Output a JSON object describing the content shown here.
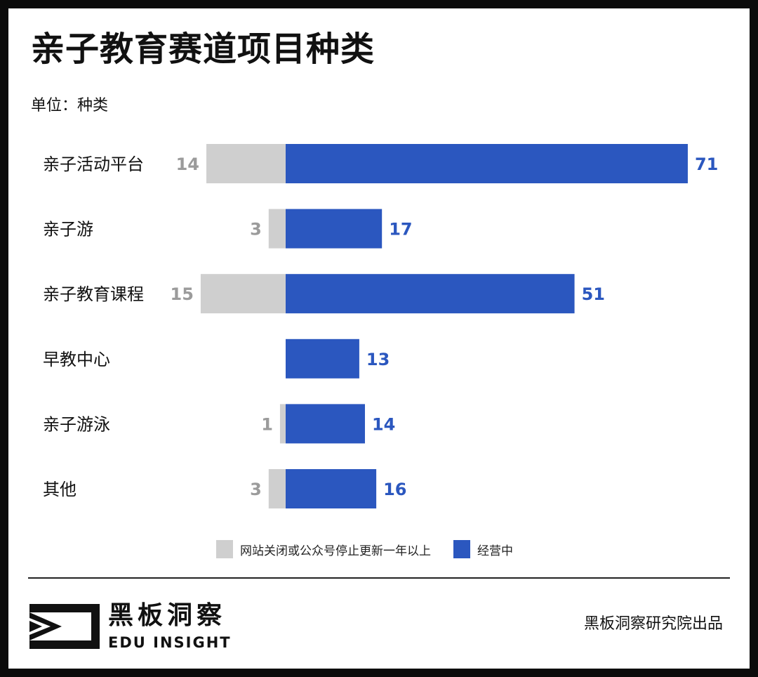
{
  "chart_data": {
    "type": "bar",
    "orientation": "horizontal",
    "stacked": "diverging",
    "title": "亲子教育赛道项目种类",
    "unit_label": "单位：种类",
    "categories": [
      "亲子活动平台",
      "亲子游",
      "亲子教育课程",
      "早教中心",
      "亲子游泳",
      "其他"
    ],
    "series": [
      {
        "name": "网站关闭或公众号停止更新一年以上",
        "values": [
          14,
          3,
          15,
          0,
          1,
          3
        ],
        "color": "#cfcfcf",
        "label_color": "#9b9b9b"
      },
      {
        "name": "经营中",
        "values": [
          71,
          17,
          51,
          13,
          14,
          16
        ],
        "color": "#2b57bf",
        "label_color": "#2b57bf"
      }
    ],
    "legend_position": "bottom",
    "grid": false
  },
  "brand": {
    "logo_cn": "黑板洞察",
    "logo_en": "EDU INSIGHT",
    "credit": "黑板洞察研究院出品"
  }
}
